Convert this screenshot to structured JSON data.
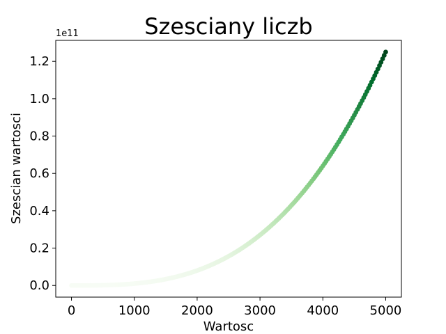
{
  "chart_data": {
    "type": "scatter",
    "title": "Szesciany liczb",
    "xlabel": "Wartosc",
    "ylabel": "Szescian wartosci",
    "y_offset_label": "1e11",
    "xlim": [
      -250,
      5250
    ],
    "ylim": [
      -0.0625,
      1.3125
    ],
    "y_scale_factor": 100000000000,
    "x_ticks": [
      0,
      1000,
      2000,
      3000,
      4000,
      5000
    ],
    "x_tick_labels": [
      "0",
      "1000",
      "2000",
      "3000",
      "4000",
      "5000"
    ],
    "y_ticks": [
      0.0,
      0.2,
      0.4,
      0.6,
      0.8,
      1.0,
      1.2
    ],
    "y_tick_labels": [
      "0.0",
      "0.2",
      "0.4",
      "0.6",
      "0.8",
      "1.0",
      "1.2"
    ],
    "series": [
      {
        "function": "y = x^3",
        "x_start": 1,
        "x_end": 5000,
        "colormap": "Greens",
        "x_step_shown": 25
      }
    ],
    "grid": false,
    "legend": "none"
  }
}
